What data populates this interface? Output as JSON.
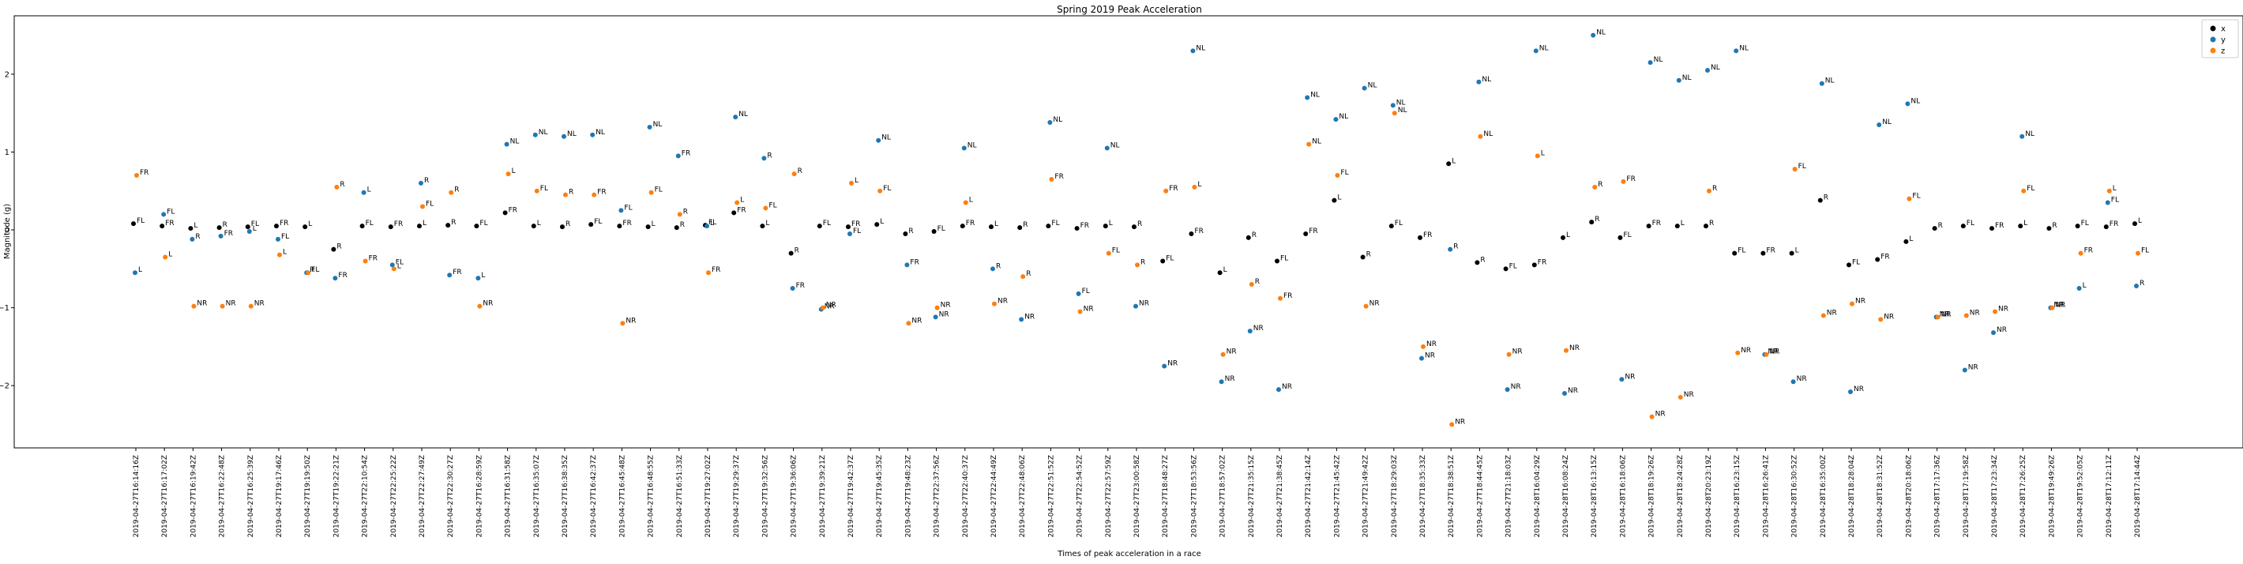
{
  "chart_data": {
    "type": "scatter",
    "title": "Spring 2019 Peak Acceleration",
    "xlabel": "Times of peak acceleration in a race",
    "ylabel": "Magnitude (g)",
    "ylim": [
      -2.8,
      2.75
    ],
    "yticks": [
      -2,
      -1,
      0,
      1,
      2
    ],
    "grid": false,
    "legend_position": "top-right",
    "colors": {
      "x": "#000000",
      "y": "#1f77b4",
      "z": "#ff7f0e"
    },
    "categories": [
      "2019-04-27T16:14:16Z",
      "2019-04-27T16:17:02Z",
      "2019-04-27T16:19:42Z",
      "2019-04-27T16:22:48Z",
      "2019-04-27T16:25:39Z",
      "2019-04-27T19:17:46Z",
      "2019-04-27T19:19:50Z",
      "2019-04-27T19:22:21Z",
      "2019-04-27T22:10:54Z",
      "2019-04-27T22:25:22Z",
      "2019-04-27T22:27:49Z",
      "2019-04-27T22:30:27Z",
      "2019-04-27T16:28:59Z",
      "2019-04-27T16:31:58Z",
      "2019-04-27T16:35:07Z",
      "2019-04-27T16:38:35Z",
      "2019-04-27T16:42:37Z",
      "2019-04-27T16:45:48Z",
      "2019-04-27T16:48:55Z",
      "2019-04-27T16:51:33Z",
      "2019-04-27T19:27:02Z",
      "2019-04-27T19:29:37Z",
      "2019-04-27T19:32:56Z",
      "2019-04-27T19:36:06Z",
      "2019-04-27T19:39:21Z",
      "2019-04-27T19:42:37Z",
      "2019-04-27T19:45:35Z",
      "2019-04-27T19:48:23Z",
      "2019-04-27T22:37:56Z",
      "2019-04-27T22:40:37Z",
      "2019-04-27T22:44:49Z",
      "2019-04-27T22:48:06Z",
      "2019-04-27T22:51:52Z",
      "2019-04-27T22:54:52Z",
      "2019-04-27T22:57:59Z",
      "2019-04-27T23:00:58Z",
      "2019-04-27T18:48:27Z",
      "2019-04-27T18:53:56Z",
      "2019-04-27T18:57:02Z",
      "2019-04-27T21:35:15Z",
      "2019-04-27T21:38:45Z",
      "2019-04-27T21:42:14Z",
      "2019-04-27T21:45:42Z",
      "2019-04-27T21:49:42Z",
      "2019-04-27T18:29:03Z",
      "2019-04-27T18:35:33Z",
      "2019-04-27T18:38:51Z",
      "2019-04-27T18:44:45Z",
      "2019-04-27T21:18:03Z",
      "2019-04-28T16:04:29Z",
      "2019-04-28T16:08:24Z",
      "2019-04-28T16:13:15Z",
      "2019-04-28T16:18:06Z",
      "2019-04-28T18:19:26Z",
      "2019-04-28T18:24:28Z",
      "2019-04-28T20:23:19Z",
      "2019-04-28T16:23:15Z",
      "2019-04-28T16:26:41Z",
      "2019-04-28T16:30:52Z",
      "2019-04-28T16:35:00Z",
      "2019-04-28T18:28:04Z",
      "2019-04-28T18:31:52Z",
      "2019-04-28T20:18:06Z",
      "2019-04-28T17:17:36Z",
      "2019-04-28T17:19:58Z",
      "2019-04-28T17:23:34Z",
      "2019-04-28T17:26:25Z",
      "2019-04-28T19:49:26Z",
      "2019-04-28T19:52:05Z",
      "2019-04-28T17:12:11Z",
      "2019-04-28T17:14:44Z"
    ],
    "series": [
      {
        "name": "x",
        "values": [
          0.08,
          0.05,
          0.02,
          0.03,
          0.04,
          0.05,
          0.04,
          -0.25,
          0.05,
          0.04,
          0.05,
          0.06,
          0.05,
          0.22,
          0.05,
          0.04,
          0.07,
          0.05,
          0.04,
          0.03,
          0.06,
          0.22,
          0.05,
          -0.3,
          0.05,
          0.04,
          0.07,
          -0.05,
          -0.02,
          0.05,
          0.04,
          0.03,
          0.05,
          0.02,
          0.05,
          0.04,
          -0.4,
          -0.05,
          -0.55,
          -0.1,
          -0.4,
          -0.05,
          0.38,
          -0.35,
          0.05,
          -0.1,
          0.85,
          -0.42,
          -0.5,
          -0.45,
          -0.1,
          0.1,
          -0.1,
          0.05,
          0.05,
          0.05,
          -0.3,
          -0.3,
          -0.3,
          0.38,
          -0.45,
          -0.38,
          -0.15,
          0.02,
          0.05,
          0.02,
          0.05,
          0.02,
          0.05,
          0.04,
          0.08
        ]
      },
      {
        "name": "y",
        "values": [
          -0.55,
          0.2,
          -0.12,
          -0.08,
          -0.02,
          -0.12,
          -0.55,
          -0.62,
          0.48,
          -0.45,
          0.6,
          -0.58,
          -0.62,
          1.1,
          1.22,
          1.2,
          1.22,
          0.25,
          1.32,
          0.95,
          0.05,
          1.45,
          0.92,
          -0.75,
          -1.02,
          -0.05,
          1.15,
          -0.45,
          -1.12,
          1.05,
          -0.5,
          -1.15,
          1.38,
          -0.82,
          1.05,
          -0.98,
          -1.75,
          2.3,
          -1.95,
          -1.3,
          -2.05,
          1.7,
          1.42,
          1.82,
          1.6,
          -1.65,
          -0.25,
          1.9,
          -2.05,
          2.3,
          -2.1,
          2.5,
          -1.92,
          2.15,
          1.92,
          2.05,
          2.3,
          -1.6,
          -1.95,
          1.88,
          -2.08,
          1.35,
          1.62,
          -1.12,
          -1.8,
          -1.32,
          1.2,
          -1.0,
          -0.75,
          0.35,
          -0.72
        ]
      },
      {
        "name": "z",
        "values": [
          0.7,
          -0.35,
          -0.98,
          -0.98,
          -0.98,
          -0.32,
          -0.55,
          0.55,
          -0.4,
          -0.5,
          0.3,
          0.48,
          -0.98,
          0.72,
          0.5,
          0.45,
          0.45,
          -1.2,
          0.48,
          0.2,
          -0.55,
          0.35,
          0.28,
          0.72,
          -1.0,
          0.6,
          0.5,
          -1.2,
          -1.0,
          0.35,
          -0.95,
          -0.6,
          0.65,
          -1.05,
          -0.3,
          -0.45,
          0.5,
          0.55,
          -1.6,
          -0.7,
          -0.88,
          1.1,
          0.7,
          -0.98,
          1.5,
          -1.5,
          -2.5,
          1.2,
          -1.6,
          0.95,
          -1.55,
          0.55,
          0.62,
          -2.4,
          -2.15,
          0.5,
          -1.58,
          -1.6,
          0.78,
          -1.1,
          -0.95,
          -1.15,
          0.4,
          -1.12,
          -1.1,
          -1.05,
          0.5,
          -1.0,
          -0.3,
          0.5,
          -0.3
        ]
      }
    ],
    "point_labels": {
      "max": "NL",
      "min": "NR",
      "x": [
        "FL",
        "FR",
        "L",
        "R"
      ],
      "y": [
        "L",
        "FL",
        "R",
        "FR"
      ],
      "z": [
        "FR",
        "L",
        "FL",
        "R"
      ]
    },
    "legend": [
      {
        "name": "x",
        "color": "#000000"
      },
      {
        "name": "y",
        "color": "#1f77b4"
      },
      {
        "name": "z",
        "color": "#ff7f0e"
      }
    ]
  }
}
